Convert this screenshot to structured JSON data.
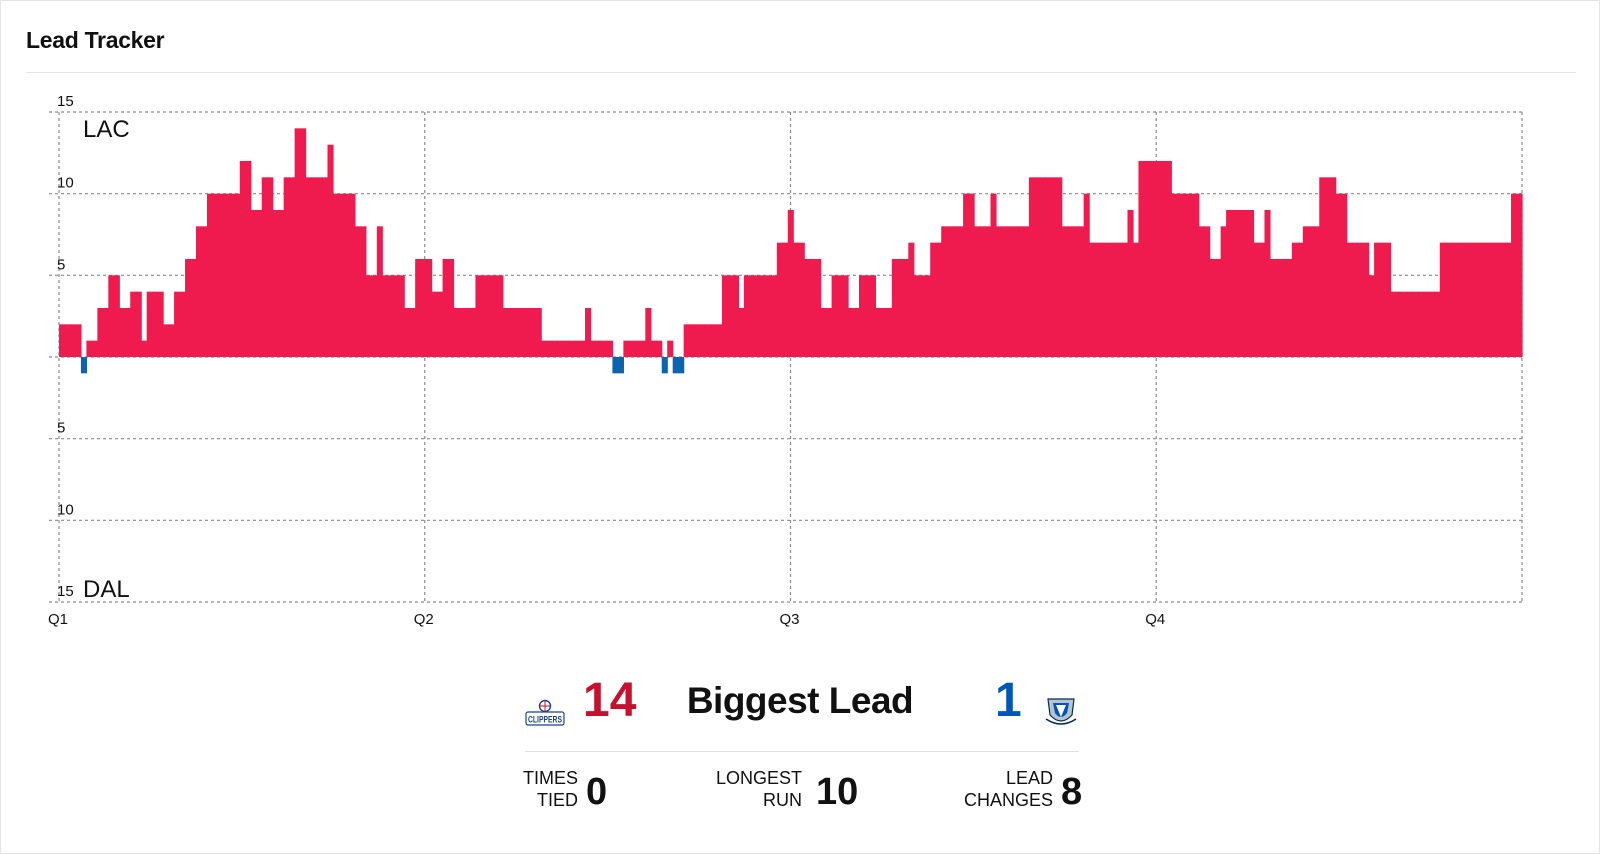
{
  "card": {
    "title": "Lead Tracker"
  },
  "teams": {
    "home": {
      "abbr": "LAC",
      "logo_text": "CLIPPERS",
      "color": "#ef1b4e",
      "accent": "#c8102e"
    },
    "away": {
      "abbr": "DAL",
      "color": "#0b64b0",
      "accent": "#0057b8"
    }
  },
  "chart_data": {
    "type": "bar",
    "title": "",
    "xlabel": "",
    "ylabel": "",
    "ylim": [
      -15,
      15
    ],
    "yticks_top": [
      "15",
      "10",
      "5"
    ],
    "yticks_bottom": [
      "5",
      "10",
      "15"
    ],
    "top_label": "LAC",
    "bottom_label": "DAL",
    "quarters": [
      "Q1",
      "Q2",
      "Q3",
      "Q4"
    ],
    "grid": true,
    "series": [
      {
        "values": [
          2,
          2,
          2,
          2,
          -1,
          1,
          1,
          3,
          3,
          5,
          5,
          3,
          3,
          4,
          4,
          1,
          4,
          4,
          4,
          2,
          2,
          4,
          4,
          6,
          6,
          8,
          8,
          10,
          10,
          10,
          10,
          10,
          10,
          12,
          12,
          9,
          9,
          11,
          11,
          9,
          9,
          11,
          11,
          14,
          14,
          11,
          11,
          11,
          11,
          13,
          10,
          10,
          10,
          10,
          8,
          8,
          5,
          5,
          8,
          5,
          5,
          5,
          5,
          3,
          3,
          6,
          6,
          6,
          4,
          4,
          6,
          6,
          3,
          3,
          3,
          3,
          5,
          5,
          5,
          5,
          5,
          3,
          3,
          3,
          3,
          3,
          3,
          3,
          1,
          1,
          1,
          1,
          1,
          1,
          1,
          1,
          3,
          1,
          1,
          1,
          1,
          -1,
          -1,
          1,
          1,
          1,
          1,
          3,
          1,
          1,
          -1,
          1,
          -1,
          -1,
          2,
          2,
          2,
          2,
          2,
          2,
          2,
          5,
          5,
          5,
          3,
          5,
          5,
          5,
          5,
          5,
          5,
          7,
          7,
          9,
          7,
          7,
          6,
          6,
          6,
          3,
          3,
          5,
          5,
          5,
          3,
          3,
          5,
          5,
          5,
          3,
          3,
          3,
          6,
          6,
          6,
          7,
          5,
          5,
          5,
          7,
          7,
          8,
          8,
          8,
          8,
          10,
          10,
          8,
          8,
          8,
          10,
          8,
          8,
          8,
          8,
          8,
          8,
          11,
          11,
          11,
          11,
          11,
          11,
          8,
          8,
          8,
          8,
          10,
          7,
          7,
          7,
          7,
          7,
          7,
          7,
          9,
          7,
          12,
          12,
          12,
          12,
          12,
          12,
          10,
          10,
          10,
          10,
          10,
          8,
          8,
          6,
          6,
          8,
          9,
          9,
          9,
          9,
          9,
          7,
          7,
          9,
          6,
          6,
          6,
          6,
          7,
          7,
          8,
          8,
          8,
          11,
          11,
          11,
          10,
          10,
          7,
          7,
          7,
          7,
          5,
          7,
          7,
          7,
          4,
          4,
          4,
          4,
          4,
          4,
          4,
          4,
          4,
          7,
          7,
          7,
          7,
          7,
          7,
          7,
          7,
          7,
          7,
          7,
          7,
          7,
          10,
          10
        ]
      }
    ]
  },
  "summary": {
    "home_biggest_lead": "14",
    "away_biggest_lead": "1",
    "biggest_lead_label": "Biggest Lead",
    "stats": [
      {
        "label_line1": "Times",
        "label_line2": "Tied",
        "value": "0"
      },
      {
        "label_line1": "Longest",
        "label_line2": "Run",
        "value": "10"
      },
      {
        "label_line1": "Lead",
        "label_line2": "Changes",
        "value": "8"
      }
    ]
  }
}
